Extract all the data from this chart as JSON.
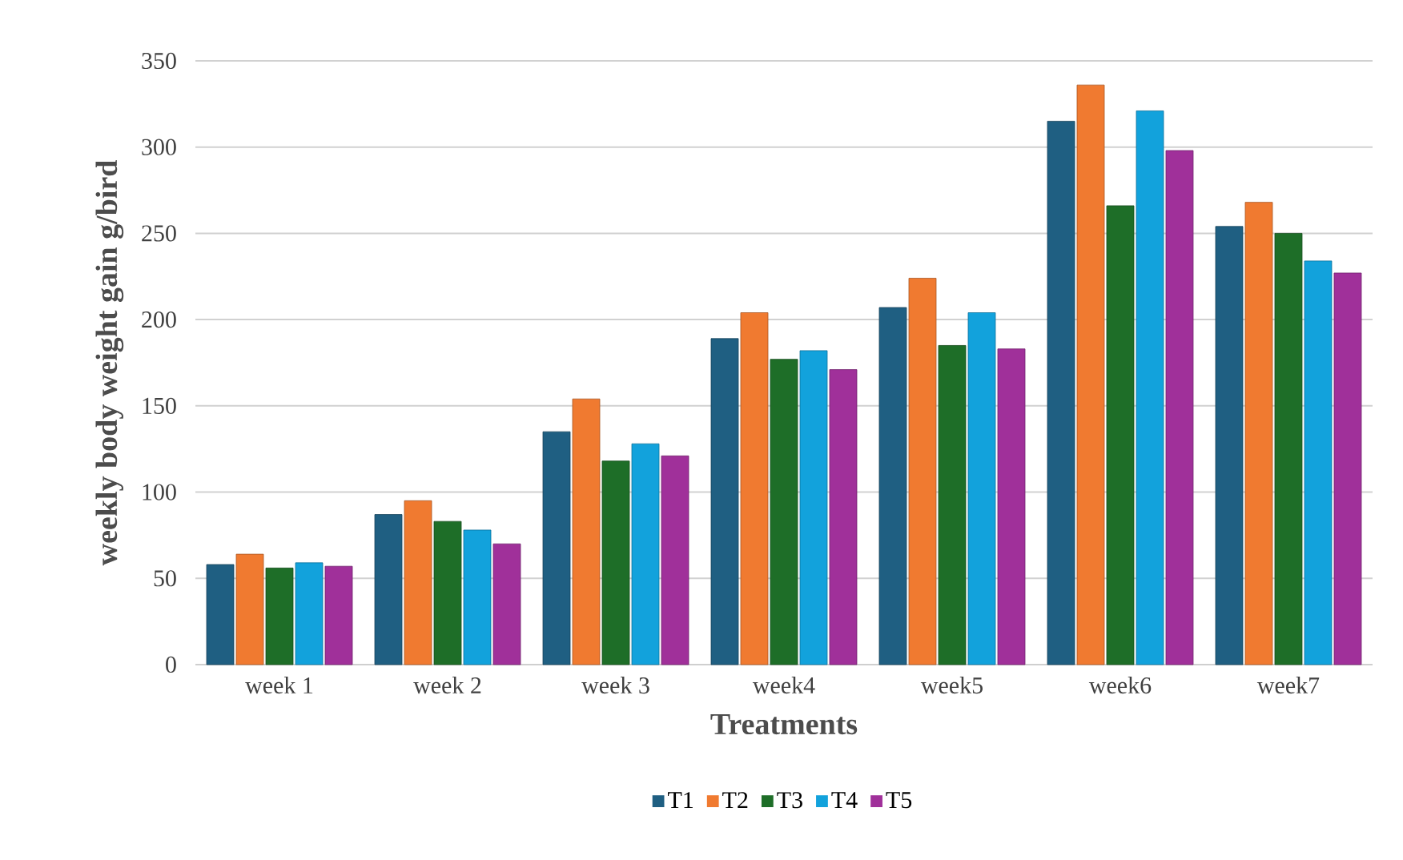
{
  "chart_data": {
    "type": "bar",
    "xlabel": "Treatments",
    "ylabel": "weekly body weight gain g/bird",
    "categories": [
      "week 1",
      "week 2",
      "week 3",
      "week4",
      "week5",
      "week6",
      "week7"
    ],
    "series": [
      {
        "name": "T1",
        "color": "#1f5f82",
        "values": [
          58,
          87,
          135,
          189,
          207,
          315,
          254
        ]
      },
      {
        "name": "T2",
        "color": "#f07a30",
        "values": [
          64,
          95,
          154,
          204,
          224,
          336,
          268
        ]
      },
      {
        "name": "T3",
        "color": "#1e6e28",
        "values": [
          56,
          83,
          118,
          177,
          185,
          266,
          250
        ]
      },
      {
        "name": "T4",
        "color": "#12a2dc",
        "values": [
          59,
          78,
          128,
          182,
          204,
          321,
          234
        ]
      },
      {
        "name": "T5",
        "color": "#a0309a",
        "values": [
          57,
          70,
          121,
          171,
          183,
          298,
          227
        ]
      }
    ],
    "ylim": [
      0,
      350
    ],
    "yticks": [
      0,
      50,
      100,
      150,
      200,
      250,
      300,
      350
    ],
    "grid": "y",
    "legend": "bottom"
  }
}
